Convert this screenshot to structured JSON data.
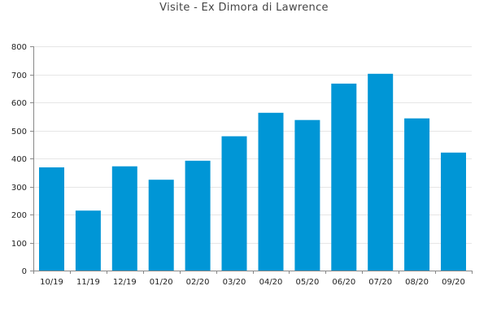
{
  "chart_data": {
    "type": "bar",
    "title": "Visite - Ex Dimora di Lawrence",
    "xlabel": "",
    "ylabel": "",
    "categories": [
      "10/19",
      "11/19",
      "12/19",
      "01/20",
      "02/20",
      "03/20",
      "04/20",
      "05/20",
      "06/20",
      "07/20",
      "08/20",
      "09/20"
    ],
    "values": [
      368,
      214,
      372,
      324,
      392,
      479,
      563,
      537,
      667,
      702,
      543,
      421
    ],
    "ylim": [
      0,
      800
    ],
    "yticks": [
      0,
      100,
      200,
      300,
      400,
      500,
      600,
      700,
      800
    ],
    "grid": true,
    "legend": "none",
    "bar_color": "#0096d6",
    "grid_color": "#e6e6e6",
    "axis_color": "#888888"
  }
}
